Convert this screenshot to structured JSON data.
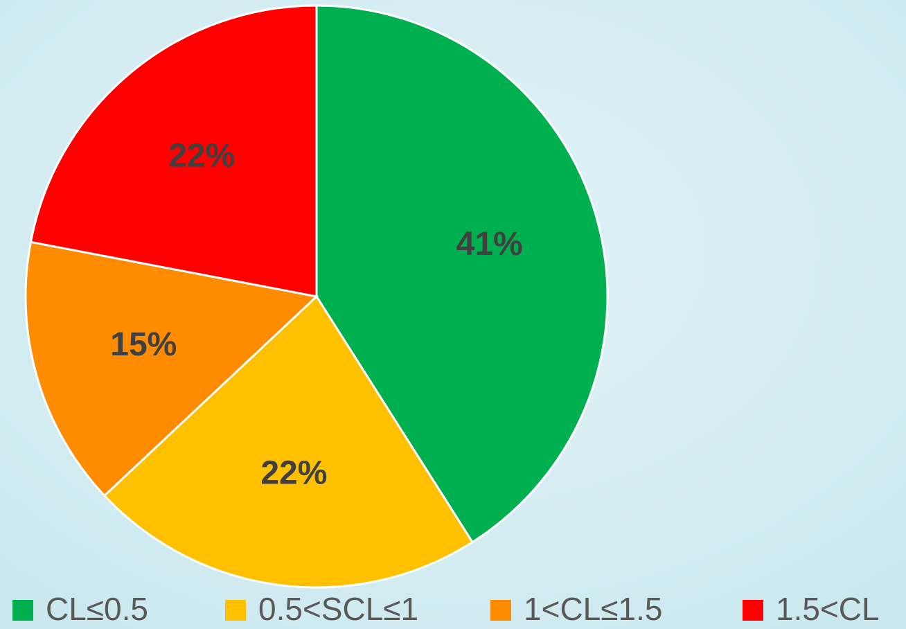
{
  "chart_data": {
    "type": "pie",
    "categories": [
      "CL≤0.5",
      "0.5<SCL≤1",
      "1<CL≤1.5",
      "1.5<CL"
    ],
    "values": [
      41,
      22,
      15,
      22
    ],
    "value_labels": [
      "41%",
      "22%",
      "15%",
      "22%"
    ],
    "colors": [
      "#00b050",
      "#ffc000",
      "#ff8c00",
      "#ff0000"
    ],
    "legend": "bottom"
  }
}
